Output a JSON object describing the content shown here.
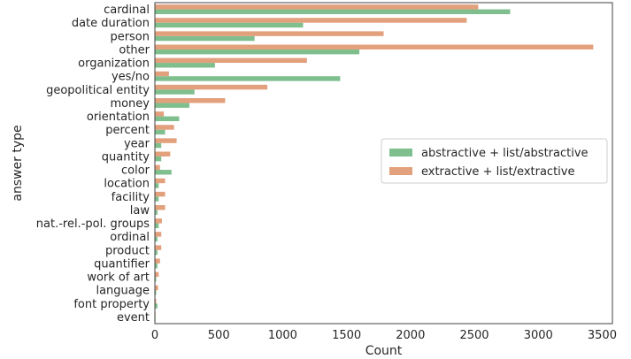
{
  "chart_data": {
    "type": "bar",
    "orientation": "horizontal",
    "categories": [
      "cardinal",
      "date duration",
      "person",
      "other",
      "organization",
      "yes/no",
      "geopolitical entity",
      "money",
      "orientation",
      "percent",
      "year",
      "quantity",
      "color",
      "location",
      "facility",
      "law",
      "nat.-rel.-pol. groups",
      "ordinal",
      "product",
      "quantifier",
      "work of art",
      "language",
      "font property",
      "event"
    ],
    "series": [
      {
        "name": "abstractive + list/abstractive",
        "color": "#7fbf8e",
        "values": [
          2780,
          1160,
          780,
          1600,
          470,
          1450,
          310,
          270,
          190,
          80,
          50,
          50,
          130,
          30,
          30,
          20,
          30,
          20,
          20,
          20,
          10,
          10,
          20,
          5
        ]
      },
      {
        "name": "extractive + list/extractive",
        "color": "#e3a07c",
        "values": [
          2530,
          2440,
          1790,
          3430,
          1190,
          110,
          880,
          550,
          70,
          150,
          170,
          120,
          40,
          80,
          80,
          80,
          55,
          50,
          50,
          40,
          30,
          25,
          10,
          5
        ]
      }
    ],
    "xlabel": "Count",
    "ylabel": "answer type",
    "xlim": [
      0,
      3580
    ],
    "xticks": [
      0,
      500,
      1000,
      1500,
      2000,
      2500,
      3000,
      3500
    ],
    "legend": "center-right",
    "grid": false
  }
}
